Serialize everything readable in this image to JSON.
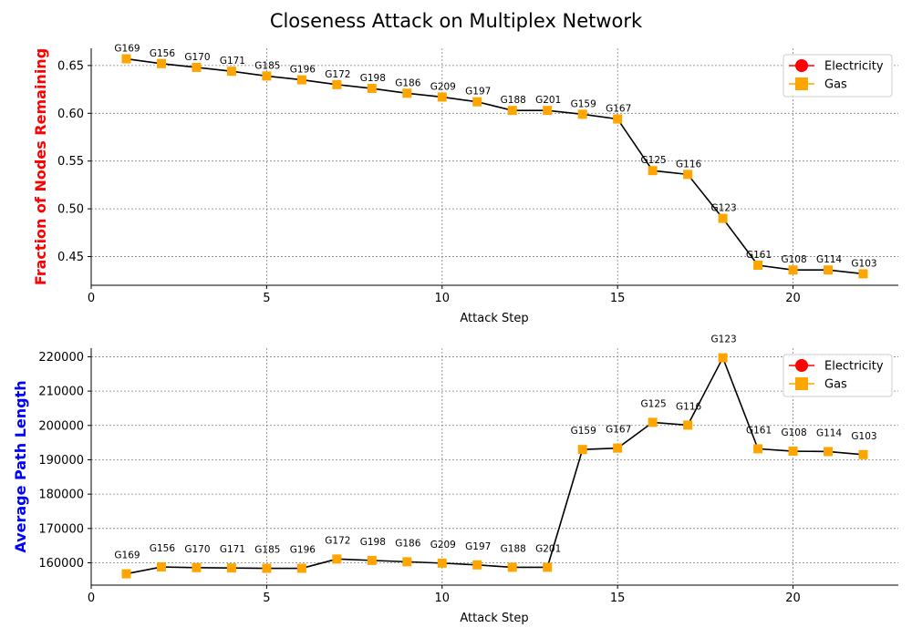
{
  "figure": {
    "title": "Closeness Attack on Multiplex Network"
  },
  "chart_data": [
    {
      "type": "line",
      "title": "",
      "xlabel": "Attack Step",
      "ylabel": "Fraction of Nodes Remaining",
      "ylabel_color": "#ff0000",
      "xlim": [
        0,
        23
      ],
      "ylim": [
        0.42,
        0.668
      ],
      "xticks": [
        0,
        5,
        10,
        15,
        20
      ],
      "xtick_labels": [
        "0",
        "5",
        "10",
        "15",
        "20"
      ],
      "yticks": [
        0.45,
        0.5,
        0.55,
        0.6,
        0.65
      ],
      "ytick_labels": [
        "0.45",
        "0.50",
        "0.55",
        "0.60",
        "0.65"
      ],
      "grid": true,
      "legend": {
        "position": "top-right",
        "entries": [
          {
            "name": "Electricity",
            "color": "#ff0000",
            "marker": "circle"
          },
          {
            "name": "Gas",
            "color": "#ffa500",
            "marker": "square"
          }
        ]
      },
      "line_color": "#000000",
      "x": [
        1,
        2,
        3,
        4,
        5,
        6,
        7,
        8,
        9,
        10,
        11,
        12,
        13,
        14,
        15,
        16,
        17,
        18,
        19,
        20,
        21,
        22
      ],
      "y": [
        0.657,
        0.652,
        0.648,
        0.644,
        0.639,
        0.635,
        0.63,
        0.626,
        0.621,
        0.617,
        0.612,
        0.603,
        0.603,
        0.599,
        0.594,
        0.54,
        0.536,
        0.49,
        0.441,
        0.436,
        0.436,
        0.432
      ],
      "marker_colors": [
        "#ffa500",
        "#ffa500",
        "#ffa500",
        "#ffa500",
        "#ffa500",
        "#ffa500",
        "#ffa500",
        "#ffa500",
        "#ffa500",
        "#ffa500",
        "#ffa500",
        "#ffa500",
        "#ffa500",
        "#ffa500",
        "#ffa500",
        "#ffa500",
        "#ffa500",
        "#ffa500",
        "#ffa500",
        "#ffa500",
        "#ffa500",
        "#ffa500"
      ],
      "annotations": [
        "G169",
        "G156",
        "G170",
        "G171",
        "G185",
        "G196",
        "G172",
        "G198",
        "G186",
        "G209",
        "G197",
        "G188",
        "G201",
        "G159",
        "G167",
        "G125",
        "G116",
        "G123",
        "G161",
        "G108",
        "G114",
        "G103"
      ]
    },
    {
      "type": "line",
      "title": "",
      "xlabel": "Attack Step",
      "ylabel": "Average Path Length",
      "ylabel_color": "#0000ff",
      "xlim": [
        0,
        23
      ],
      "ylim": [
        153500,
        222500
      ],
      "xticks": [
        0,
        5,
        10,
        15,
        20
      ],
      "xtick_labels": [
        "0",
        "5",
        "10",
        "15",
        "20"
      ],
      "yticks": [
        160000,
        170000,
        180000,
        190000,
        200000,
        210000,
        220000
      ],
      "ytick_labels": [
        "160000",
        "170000",
        "180000",
        "190000",
        "200000",
        "210000",
        "220000"
      ],
      "grid": true,
      "legend": {
        "position": "top-right",
        "entries": [
          {
            "name": "Electricity",
            "color": "#ff0000",
            "marker": "circle"
          },
          {
            "name": "Gas",
            "color": "#ffa500",
            "marker": "square"
          }
        ]
      },
      "line_color": "#000000",
      "x": [
        1,
        2,
        3,
        4,
        5,
        6,
        7,
        8,
        9,
        10,
        11,
        12,
        13,
        14,
        15,
        16,
        17,
        18,
        19,
        20,
        21,
        22
      ],
      "y": [
        156800,
        158800,
        158600,
        158500,
        158400,
        158400,
        161100,
        160700,
        160300,
        159900,
        159400,
        158700,
        158700,
        193000,
        193400,
        200900,
        200100,
        219700,
        193200,
        192500,
        192400,
        191500
      ],
      "marker_colors": [
        "#ffa500",
        "#ffa500",
        "#ffa500",
        "#ffa500",
        "#ffa500",
        "#ffa500",
        "#ffa500",
        "#ffa500",
        "#ffa500",
        "#ffa500",
        "#ffa500",
        "#ffa500",
        "#ffa500",
        "#ffa500",
        "#ffa500",
        "#ffa500",
        "#ffa500",
        "#ffa500",
        "#ffa500",
        "#ffa500",
        "#ffa500",
        "#ffa500"
      ],
      "annotations": [
        "G169",
        "G156",
        "G170",
        "G171",
        "G185",
        "G196",
        "G172",
        "G198",
        "G186",
        "G209",
        "G197",
        "G188",
        "G201",
        "G159",
        "G167",
        "G125",
        "G116",
        "G123",
        "G161",
        "G108",
        "G114",
        "G103"
      ]
    }
  ]
}
